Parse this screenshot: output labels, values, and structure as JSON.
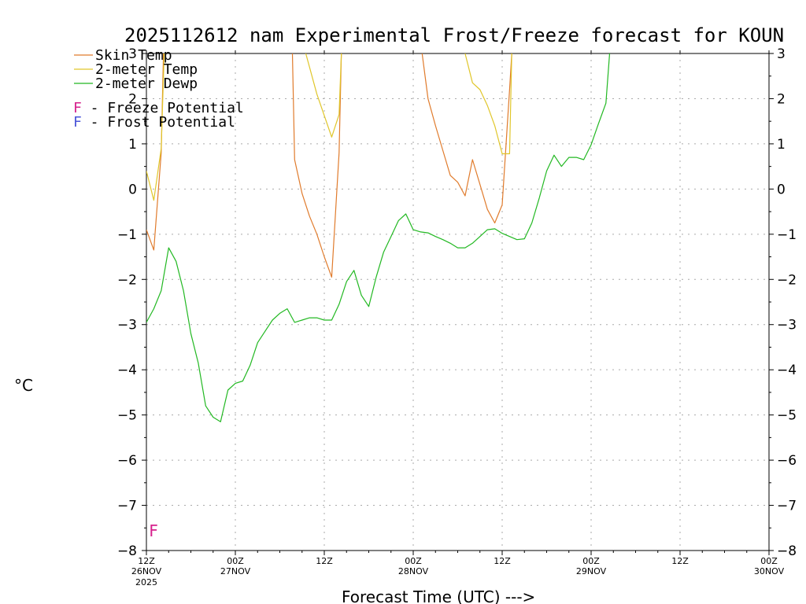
{
  "chart_data": {
    "type": "line",
    "title": "2025112612 nam Experimental Frost/Freeze forecast for KOUN",
    "ylabel": "°C",
    "xlabel": "Forecast Time (UTC) --->",
    "ylim": [
      -8,
      3
    ],
    "xlim": [
      0,
      84
    ],
    "yticks": [
      "-8",
      "-7",
      "-6",
      "-5",
      "-4",
      "-3",
      "-2",
      "-1",
      "0",
      "1",
      "2",
      "3"
    ],
    "xticks": [
      {
        "x": 0,
        "label": "12Z",
        "date": "26NOV",
        "year": "2025"
      },
      {
        "x": 12,
        "label": "00Z",
        "date": "27NOV",
        "year": ""
      },
      {
        "x": 24,
        "label": "12Z",
        "date": "",
        "year": ""
      },
      {
        "x": 36,
        "label": "00Z",
        "date": "28NOV",
        "year": ""
      },
      {
        "x": 48,
        "label": "12Z",
        "date": "",
        "year": ""
      },
      {
        "x": 60,
        "label": "00Z",
        "date": "29NOV",
        "year": ""
      },
      {
        "x": 72,
        "label": "12Z",
        "date": "",
        "year": ""
      },
      {
        "x": 84,
        "label": "00Z",
        "date": "30NOV",
        "year": ""
      }
    ],
    "grid": true,
    "legend": [
      {
        "label": "Skin Temp",
        "color": "#e07b2c"
      },
      {
        "label": "2-meter Temp",
        "color": "#e0c62a"
      },
      {
        "label": "2-meter Dewp",
        "color": "#22b822"
      }
    ],
    "flag_legend": [
      {
        "letter": "F",
        "text": " - Freeze Potential",
        "color": "#d6208c"
      },
      {
        "letter": "F",
        "text": " - Frost Potential",
        "color": "#4a55d8"
      }
    ],
    "flags": [
      {
        "x": 1,
        "y": -7.55,
        "letter": "F",
        "color": "#d6208c"
      }
    ],
    "series": [
      {
        "name": "Skin Temp",
        "color": "#e07b2c",
        "segments": [
          [
            [
              0,
              -0.9
            ],
            [
              1,
              -1.35
            ],
            [
              2,
              0.8
            ],
            [
              2.3,
              3.0
            ]
          ],
          [
            [
              19.7,
              3.0
            ],
            [
              20,
              0.65
            ],
            [
              21,
              -0.1
            ],
            [
              22,
              -0.6
            ],
            [
              23,
              -1.0
            ],
            [
              24,
              -1.5
            ],
            [
              25,
              -1.95
            ],
            [
              26,
              0.8
            ],
            [
              26.3,
              3.0
            ]
          ],
          [
            [
              37.2,
              3.0
            ],
            [
              38,
              2.0
            ],
            [
              39,
              1.4
            ],
            [
              40,
              0.85
            ],
            [
              41,
              0.3
            ],
            [
              42,
              0.15
            ],
            [
              43,
              -0.15
            ],
            [
              44,
              0.65
            ],
            [
              45,
              0.1
            ],
            [
              46,
              -0.45
            ],
            [
              47,
              -0.75
            ],
            [
              48,
              -0.35
            ],
            [
              49,
              2.2
            ],
            [
              49.3,
              3.0
            ]
          ]
        ]
      },
      {
        "name": "2-meter Temp",
        "color": "#e0c62a",
        "segments": [
          [
            [
              0,
              0.4
            ],
            [
              1,
              -0.25
            ],
            [
              2,
              0.9
            ],
            [
              2.4,
              3.0
            ]
          ],
          [
            [
              21.5,
              3.0
            ],
            [
              23,
              2.1
            ],
            [
              25,
              1.15
            ],
            [
              26,
              1.65
            ],
            [
              26.3,
              3.0
            ]
          ],
          [
            [
              43,
              3.0
            ],
            [
              44,
              2.35
            ],
            [
              45,
              2.2
            ],
            [
              46,
              1.85
            ],
            [
              47,
              1.4
            ],
            [
              48,
              0.78
            ],
            [
              49,
              0.78
            ],
            [
              49.3,
              3.0
            ]
          ]
        ]
      },
      {
        "name": "2-meter Dewp",
        "color": "#22b822",
        "segments": [
          [
            [
              0,
              -2.95
            ],
            [
              1,
              -2.65
            ],
            [
              2,
              -2.25
            ],
            [
              3,
              -1.3
            ],
            [
              4,
              -1.6
            ],
            [
              5,
              -2.25
            ],
            [
              6,
              -3.2
            ],
            [
              7,
              -3.85
            ],
            [
              8,
              -4.8
            ],
            [
              9,
              -5.05
            ],
            [
              10,
              -5.15
            ],
            [
              11,
              -4.45
            ],
            [
              12,
              -4.3
            ],
            [
              13,
              -4.25
            ],
            [
              14,
              -3.9
            ],
            [
              15,
              -3.4
            ],
            [
              16,
              -3.15
            ],
            [
              17,
              -2.9
            ],
            [
              18,
              -2.75
            ],
            [
              19,
              -2.65
            ],
            [
              20,
              -2.95
            ],
            [
              21,
              -2.9
            ],
            [
              22,
              -2.85
            ],
            [
              23,
              -2.85
            ],
            [
              24,
              -2.9
            ],
            [
              25,
              -2.9
            ],
            [
              26,
              -2.55
            ],
            [
              27,
              -2.05
            ],
            [
              28,
              -1.8
            ],
            [
              29,
              -2.35
            ],
            [
              30,
              -2.6
            ],
            [
              31,
              -1.95
            ],
            [
              32,
              -1.4
            ],
            [
              33,
              -1.05
            ],
            [
              34,
              -0.7
            ],
            [
              35,
              -0.55
            ],
            [
              36,
              -0.9
            ],
            [
              37,
              -0.95
            ],
            [
              38,
              -0.97
            ],
            [
              39,
              -1.05
            ],
            [
              40,
              -1.12
            ],
            [
              41,
              -1.2
            ],
            [
              42,
              -1.3
            ],
            [
              43,
              -1.3
            ],
            [
              44,
              -1.2
            ],
            [
              45,
              -1.05
            ],
            [
              46,
              -0.9
            ],
            [
              47,
              -0.88
            ],
            [
              48,
              -0.98
            ],
            [
              49,
              -1.05
            ],
            [
              50,
              -1.12
            ],
            [
              51,
              -1.1
            ],
            [
              52,
              -0.75
            ],
            [
              53,
              -0.2
            ],
            [
              54,
              0.4
            ],
            [
              55,
              0.75
            ],
            [
              56,
              0.5
            ],
            [
              57,
              0.7
            ],
            [
              58,
              0.7
            ],
            [
              59,
              0.65
            ],
            [
              60,
              0.98
            ],
            [
              61,
              1.45
            ],
            [
              62,
              1.9
            ],
            [
              62.5,
              3.0
            ]
          ]
        ]
      }
    ]
  }
}
